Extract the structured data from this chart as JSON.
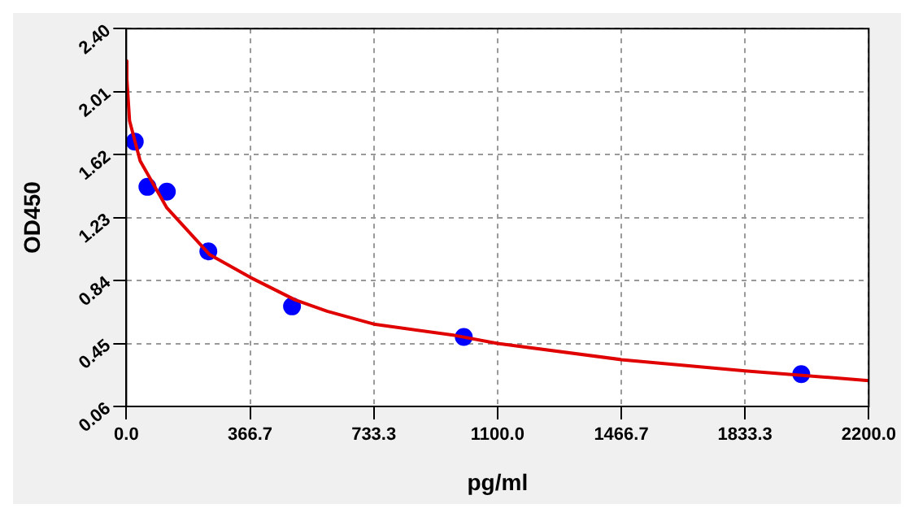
{
  "chart_data": {
    "type": "scatter",
    "xlabel": "pg/ml",
    "ylabel": "OD450",
    "xlim": [
      0,
      2200
    ],
    "xticks": [
      {
        "value": 0,
        "label": "0.0"
      },
      366.7,
      733.3,
      {
        "value": 1100,
        "label": "1100.0"
      },
      1466.7,
      1833.3,
      {
        "value": 2200,
        "label": "2200.0"
      }
    ],
    "ylim": [
      0.06,
      2.4
    ],
    "yticks": [
      0.06,
      0.45,
      0.84,
      1.23,
      1.62,
      2.01,
      {
        "value": 2.4,
        "label": "2.40"
      }
    ],
    "grid": true,
    "legend": false,
    "marker": "circle",
    "series": [
      {
        "type": "line",
        "color": "#e00000",
        "marker": "none",
        "line_style": "solid",
        "x": [
          0,
          1.5,
          9.5,
          41,
          120,
          247,
          366.7,
          500,
          595,
          733,
          973,
          1100,
          1466.7,
          1833.3,
          2200
        ],
        "values": [
          2.2,
          2.09,
          1.83,
          1.58,
          1.29,
          1.0,
          0.86,
          0.72,
          0.65,
          0.57,
          0.5,
          0.45,
          0.35,
          0.28,
          0.22
        ]
      },
      {
        "type": "scatter",
        "color": "#0000ff",
        "x": [
          25,
          62.5,
          120,
          243,
          491,
          1000,
          2000
        ],
        "values": [
          1.7,
          1.42,
          1.39,
          1.02,
          0.68,
          0.49,
          0.26
        ]
      }
    ]
  }
}
